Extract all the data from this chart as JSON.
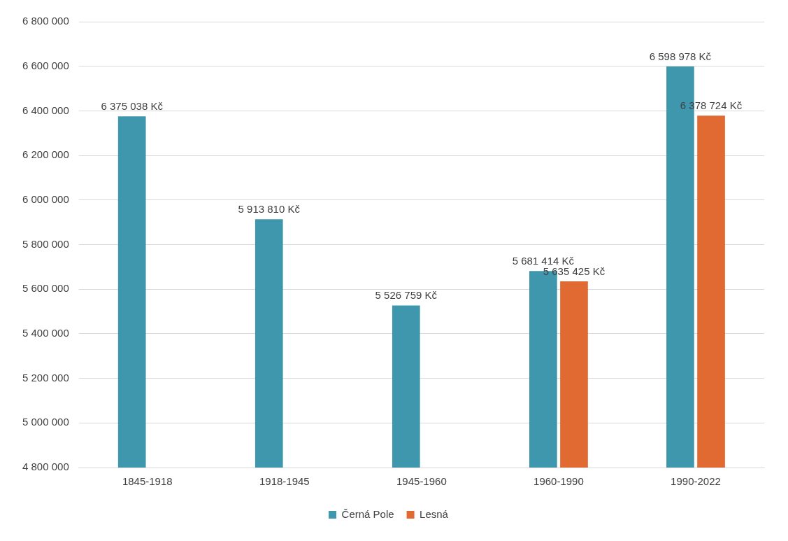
{
  "chart_data": {
    "type": "bar",
    "categories": [
      "1845-1918",
      "1918-1945",
      "1945-1960",
      "1960-1990",
      "1990-2022"
    ],
    "series": [
      {
        "name": "Černá Pole",
        "color": "#3e97ad",
        "values": [
          6375038,
          5913810,
          5526759,
          5681414,
          6598978
        ],
        "value_labels": [
          "6 375 038 Kč",
          "5 913 810 Kč",
          "5 526 759 Kč",
          "5 681 414 Kč",
          "6 598 978 Kč"
        ]
      },
      {
        "name": "Lesná",
        "color": "#e06a32",
        "values": [
          null,
          null,
          null,
          5635425,
          6378724
        ],
        "value_labels": [
          null,
          null,
          null,
          "5 635 425 Kč",
          "6 378 724 Kč"
        ]
      }
    ],
    "ylim": [
      4800000,
      6800000
    ],
    "yticks": [
      {
        "value": 4800000,
        "label": "4 800 000"
      },
      {
        "value": 5000000,
        "label": "5 000 000"
      },
      {
        "value": 5200000,
        "label": "5 200 000"
      },
      {
        "value": 5400000,
        "label": "5 400 000"
      },
      {
        "value": 5600000,
        "label": "5 600 000"
      },
      {
        "value": 5800000,
        "label": "5 800 000"
      },
      {
        "value": 6000000,
        "label": "6 000 000"
      },
      {
        "value": 6200000,
        "label": "6 200 000"
      },
      {
        "value": 6400000,
        "label": "6 400 000"
      },
      {
        "value": 6600000,
        "label": "6 600 000"
      },
      {
        "value": 6800000,
        "label": "6 800 000"
      }
    ],
    "grid": "y",
    "legend": "bottom"
  }
}
